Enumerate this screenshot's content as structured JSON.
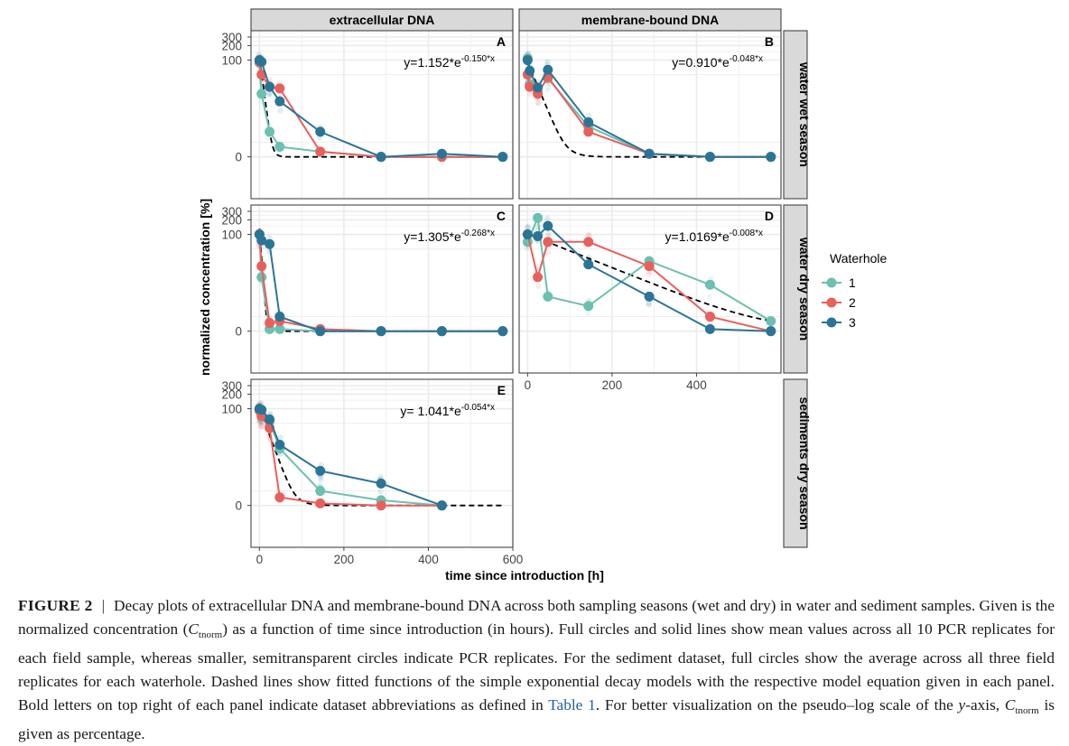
{
  "figure": {
    "strips_top": [
      "extracellular DNA",
      "membrane-bound DNA"
    ],
    "strips_right": [
      "water wet season",
      "water dry season",
      "sediments dry season"
    ],
    "ylabel": "normalized concentration [%]",
    "xlabel": "time since introduction [h]",
    "legend_title": "Waterhole",
    "legend_items": [
      "1",
      "2",
      "3"
    ]
  },
  "caption": {
    "label": "FIGURE 2",
    "separator": "|",
    "text1": "Decay plots of extracellular DNA and membrane-bound DNA across both sampling seasons (wet and dry) in water and sediment samples. Given is the normalized concentration (",
    "c_symbol": "C",
    "c_sub": "tnorm",
    "text2": ") as a function of time since introduction (in hours). Full circles and solid lines show mean values across all 10 PCR replicates for each field sample, whereas smaller, semitransparent circles indicate PCR replicates. For the sediment dataset, full circles show the average across all three field replicates for each waterhole. Dashed lines show fitted functions of the simple exponential decay models with the respective model equation given in each panel. Bold letters on top right of each panel indicate dataset abbreviations as defined in ",
    "table_ref": "Table 1",
    "text3": ". For better visualization on the pseudo–log scale of the ",
    "y_italic": "y",
    "text4": "-axis, ",
    "text5": " is given as percentage."
  },
  "chart_data": {
    "type": "scatter",
    "y_scale": "pseudo-log",
    "y_ticks": [
      0,
      100,
      200,
      300
    ],
    "x_ticks": [
      0,
      200,
      400,
      600
    ],
    "xlim": [
      -20,
      600
    ],
    "ylim": [
      -5,
      300
    ],
    "grid": true,
    "legend_position": "right",
    "colors": {
      "1": "#6cc0b0",
      "2": "#e8605c",
      "3": "#2a7597",
      "background": "#ffffff",
      "strip": "#d9d9d9",
      "grid": "#ebebeb"
    },
    "panels": [
      {
        "id": "A",
        "dataset": "extracellular DNA",
        "habitat": "water wet season",
        "equation_base": "y=1.152*e",
        "equation_exp": "-0.150*x",
        "fit": {
          "a": 1.152,
          "k": 0.15,
          "xmax": 580
        },
        "series": [
          {
            "name": "1",
            "x": [
              0,
              5,
              24,
              48,
              144,
              288,
              432,
              576
            ],
            "y": [
              88,
              20,
              3,
              1,
              0.5,
              0,
              0,
              0
            ]
          },
          {
            "name": "2",
            "x": [
              0,
              5,
              24,
              48,
              144,
              288,
              432,
              576
            ],
            "y": [
              92,
              50,
              28,
              26,
              0.5,
              0,
              0,
              0
            ]
          },
          {
            "name": "3",
            "x": [
              0,
              5,
              24,
              48,
              144,
              288,
              432,
              576
            ],
            "y": [
              100,
              92,
              28,
              14,
              3,
              0,
              0.3,
              0
            ]
          }
        ]
      },
      {
        "id": "B",
        "dataset": "membrane-bound DNA",
        "habitat": "water wet season",
        "equation_base": "y=0.910*e",
        "equation_exp": "-0.048*x",
        "fit": {
          "a": 0.91,
          "k": 0.048,
          "xmax": 580
        },
        "series": [
          {
            "name": "1",
            "x": [
              0,
              5,
              24,
              48,
              144,
              288,
              432,
              576
            ],
            "y": [
              110,
              32,
              22,
              42,
              4,
              0.3,
              0,
              0
            ]
          },
          {
            "name": "2",
            "x": [
              0,
              5,
              24,
              48,
              144,
              288,
              432,
              576
            ],
            "y": [
              50,
              28,
              20,
              45,
              3,
              0.3,
              0,
              0
            ]
          },
          {
            "name": "3",
            "x": [
              0,
              5,
              24,
              48,
              144,
              288,
              432,
              576
            ],
            "y": [
              100,
              60,
              27,
              63,
              5,
              0.3,
              0,
              0
            ]
          }
        ]
      },
      {
        "id": "C",
        "dataset": "extracellular DNA",
        "habitat": "water dry season",
        "equation_base": "y=1.305*e",
        "equation_exp": "-0.268*x",
        "fit": {
          "a": 1.305,
          "k": 0.268,
          "xmax": 580
        },
        "series": [
          {
            "name": "1",
            "x": [
              0,
              5,
              24,
              48,
              144,
              288,
              432,
              576
            ],
            "y": [
              100,
              13,
              0.2,
              0.2,
              0,
              0,
              0,
              0
            ]
          },
          {
            "name": "2",
            "x": [
              0,
              5,
              24,
              48,
              144,
              288,
              432,
              576
            ],
            "y": [
              100,
              22,
              0.8,
              1,
              0.2,
              0,
              0,
              0
            ]
          },
          {
            "name": "3",
            "x": [
              0,
              5,
              24,
              48,
              144,
              288,
              432,
              576
            ],
            "y": [
              100,
              75,
              63,
              1.5,
              0,
              0,
              0,
              0
            ]
          }
        ]
      },
      {
        "id": "D",
        "dataset": "membrane-bound DNA",
        "habitat": "water dry season",
        "equation_base": "y=1.0169*e",
        "equation_exp": "-0.008*x",
        "fit": {
          "a": 1.0169,
          "k": 0.008,
          "xmax": 580
        },
        "series": [
          {
            "name": "1",
            "x": [
              0,
              24,
              48,
              144,
              288,
              432,
              576
            ],
            "y": [
              70,
              220,
              5,
              3,
              28,
              9,
              1
            ]
          },
          {
            "name": "2",
            "x": [
              0,
              24,
              48,
              144,
              288,
              432,
              576
            ],
            "y": [
              100,
              13,
              70,
              70,
              22,
              1.5,
              0
            ]
          },
          {
            "name": "3",
            "x": [
              0,
              24,
              48,
              144,
              288,
              432,
              576
            ],
            "y": [
              100,
              92,
              150,
              24,
              5,
              0.2,
              0
            ]
          }
        ]
      },
      {
        "id": "E",
        "dataset": "extracellular DNA",
        "habitat": "sediments dry season",
        "equation_base": "y= 1.041*e",
        "equation_exp": "-0.054*x",
        "fit": {
          "a": 1.041,
          "k": 0.054,
          "xmax": 580
        },
        "series": [
          {
            "name": "1",
            "x": [
              0,
              5,
              24,
              48,
              144,
              288,
              432
            ],
            "y": [
              95,
              75,
              55,
              15,
              1.5,
              0.5,
              0
            ]
          },
          {
            "name": "2",
            "x": [
              0,
              5,
              24,
              48,
              144,
              288,
              432
            ],
            "y": [
              92,
              70,
              40,
              0.8,
              0.2,
              0,
              0
            ]
          },
          {
            "name": "3",
            "x": [
              0,
              5,
              24,
              48,
              144,
              288,
              432
            ],
            "y": [
              100,
              95,
              60,
              18,
              5,
              2.5,
              0
            ]
          }
        ]
      }
    ]
  }
}
